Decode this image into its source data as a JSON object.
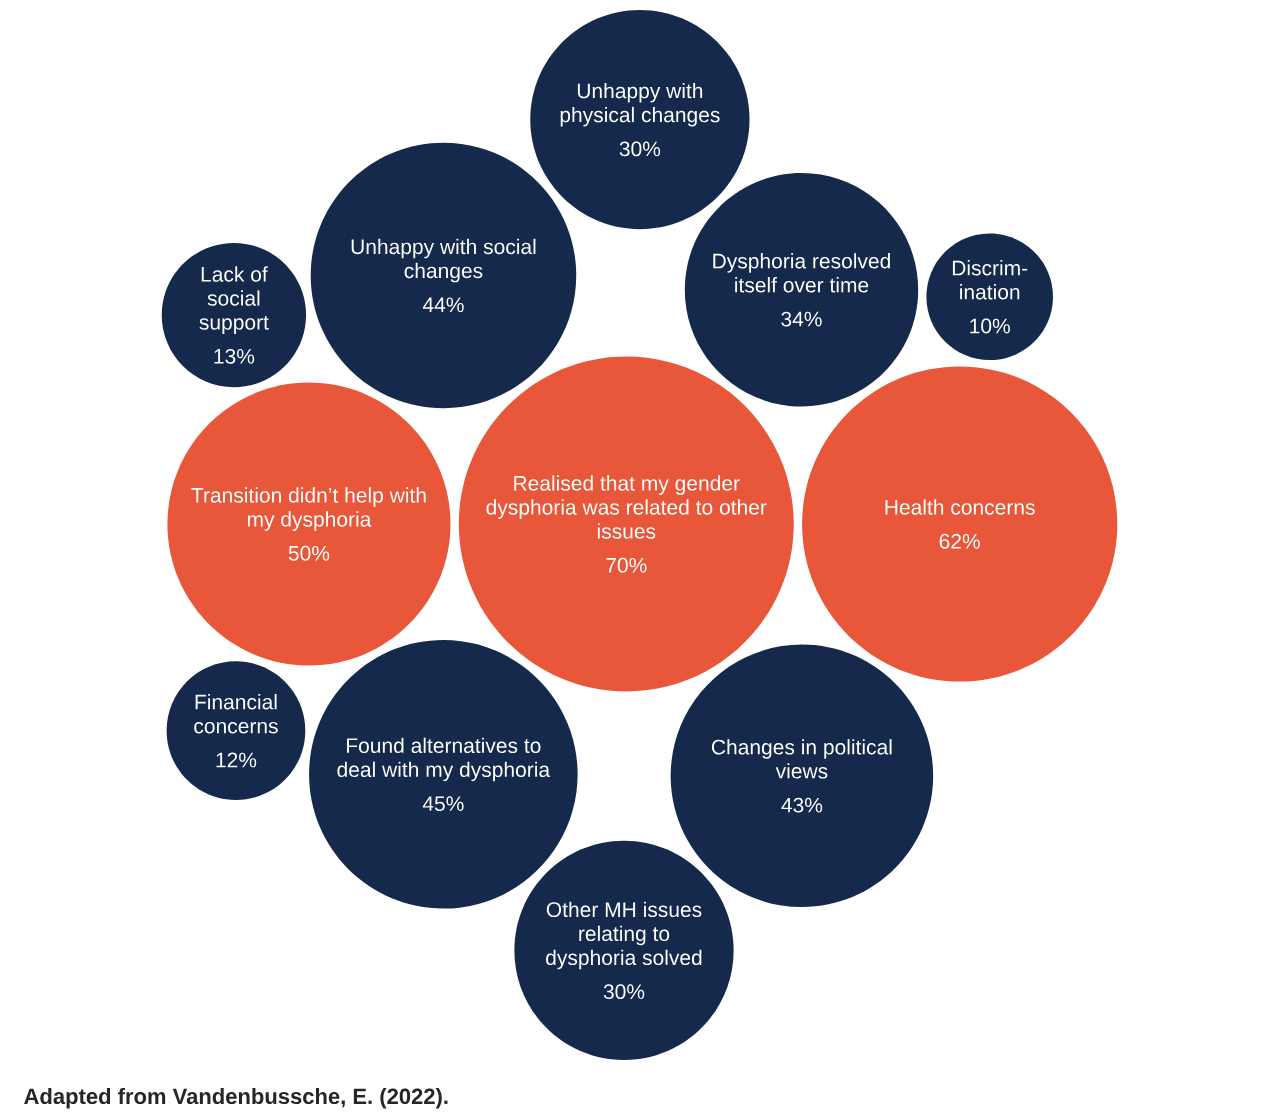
{
  "chart_data": {
    "type": "other",
    "categories": [
      "Health concerns",
      "Financial concerns",
      "Changes in political views",
      "Unhappy with physical changes",
      "Unhappy with social changes",
      "Realised that my gender dysphoria was related to other issues",
      "Lack of social support",
      "Transition didn’t help with my dysphoria",
      "Discrim-ination",
      "Found alternatives to deal with my dysphoria",
      "Other MH issues relating to dysphoria solved",
      "Dysphoria resolved itself over time"
    ],
    "values": [
      62,
      12,
      43,
      30,
      44,
      70,
      13,
      50,
      10,
      45,
      30,
      34
    ],
    "value_labels": [
      "62%",
      "12%",
      "43%",
      "30%",
      "44%",
      "70%",
      "13%",
      "50%",
      "10%",
      "45%",
      "30%",
      "34%"
    ],
    "colors": [
      "#e8573a",
      "#14294b",
      "#14294b",
      "#14294b",
      "#14294b",
      "#e8573a",
      "#14294b",
      "#e8573a",
      "#14294b",
      "#14294b",
      "#14294b",
      "#14294b"
    ],
    "annotations": [
      "Adapted from Vandenbussche, E. (2022)."
    ]
  }
}
